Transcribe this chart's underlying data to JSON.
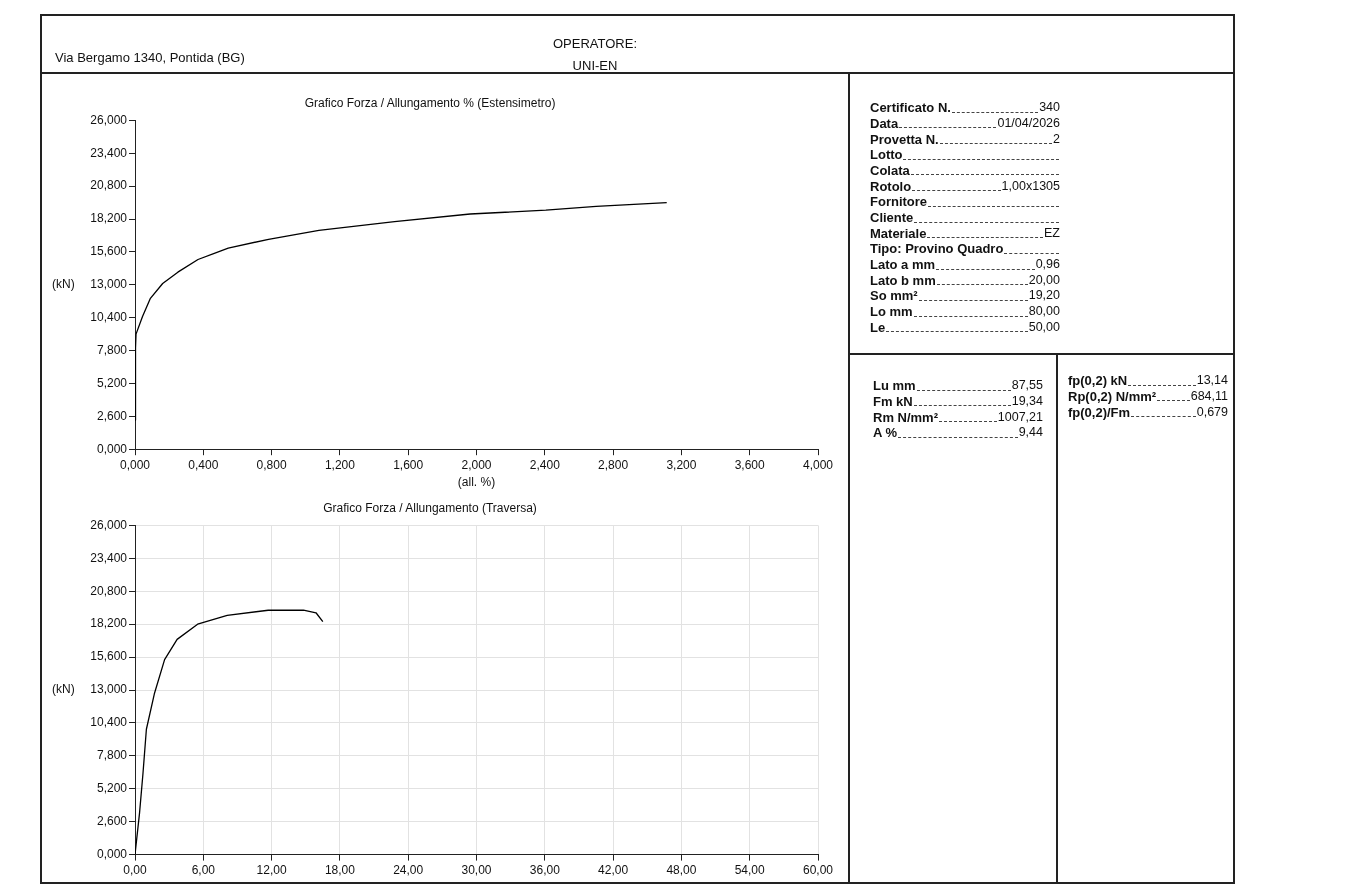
{
  "chart_data": [
    {
      "type": "other",
      "annotations": [
        "Via Bergamo 1340, Pontida (BG)",
        "OPERATORE:",
        "UNI-EN"
      ]
    },
    {
      "type": "line",
      "title": "Grafico Forza / Allungamento % (Estensimetro)",
      "xlabel": "(all. %)",
      "ylabel": "(kN)",
      "marker": "none",
      "line_style": "solid",
      "grid": false,
      "xlim": [
        0,
        4
      ],
      "xticks": [
        {
          "value": 0,
          "label": "0,000"
        },
        {
          "value": 0.4,
          "label": "0,400"
        },
        {
          "value": 0.8,
          "label": "0,800"
        },
        {
          "value": 1.2,
          "label": "1,200"
        },
        {
          "value": 1.6,
          "label": "1,600"
        },
        {
          "value": 2,
          "label": "2,000"
        },
        {
          "value": 2.4,
          "label": "2,400"
        },
        {
          "value": 2.8,
          "label": "2,800"
        },
        {
          "value": 3.2,
          "label": "3,200"
        },
        {
          "value": 3.6,
          "label": "3,600"
        },
        {
          "value": 4,
          "label": "4,000"
        }
      ],
      "ylim": [
        0,
        26
      ],
      "yticks": [
        {
          "value": 0,
          "label": "0,000"
        },
        {
          "value": 2.6,
          "label": "2,600"
        },
        {
          "value": 5.2,
          "label": "5,200"
        },
        {
          "value": 7.8,
          "label": "7,800"
        },
        {
          "value": 10.4,
          "label": "10,400"
        },
        {
          "value": 13,
          "label": "13,000"
        },
        {
          "value": 15.6,
          "label": "15,600"
        },
        {
          "value": 18.2,
          "label": "18,200"
        },
        {
          "value": 20.8,
          "label": "20,800"
        },
        {
          "value": 23.4,
          "label": "23,400"
        },
        {
          "value": 26,
          "label": "26,000"
        }
      ],
      "series": [
        {
          "color": "#000000",
          "x": [
            0,
            0.003,
            0.006,
            0.044,
            0.089,
            0.162,
            0.251,
            0.369,
            0.546,
            0.782,
            1.077,
            1.52,
            1.963,
            2.406,
            2.701,
            3.114
          ],
          "values": [
            2.3,
            8.0,
            9.1,
            10.5,
            11.9,
            13.1,
            14.0,
            15.0,
            15.9,
            16.6,
            17.3,
            18.0,
            18.6,
            18.9,
            19.2,
            19.5
          ]
        }
      ]
    },
    {
      "type": "line",
      "title": "Grafico Forza / Allungamento (Traversa)",
      "ylabel": "(kN)",
      "marker": "none",
      "line_style": "solid",
      "grid": true,
      "xlim": [
        0,
        60
      ],
      "xticks": [
        {
          "value": 0,
          "label": "0,00"
        },
        {
          "value": 6,
          "label": "6,00"
        },
        {
          "value": 12,
          "label": "12,00"
        },
        {
          "value": 18,
          "label": "18,00"
        },
        {
          "value": 24,
          "label": "24,00"
        },
        {
          "value": 30,
          "label": "30,00"
        },
        {
          "value": 36,
          "label": "36,00"
        },
        {
          "value": 42,
          "label": "42,00"
        },
        {
          "value": 48,
          "label": "48,00"
        },
        {
          "value": 54,
          "label": "54,00"
        },
        {
          "value": 60,
          "label": "60,00"
        }
      ],
      "ylim": [
        0,
        26
      ],
      "yticks": [
        {
          "value": 0,
          "label": "0,000"
        },
        {
          "value": 2.6,
          "label": "2,600"
        },
        {
          "value": 5.2,
          "label": "5,200"
        },
        {
          "value": 7.8,
          "label": "7,800"
        },
        {
          "value": 10.4,
          "label": "10,400"
        },
        {
          "value": 13,
          "label": "13,000"
        },
        {
          "value": 15.6,
          "label": "15,600"
        },
        {
          "value": 18.2,
          "label": "18,200"
        },
        {
          "value": 20.8,
          "label": "20,800"
        },
        {
          "value": 23.4,
          "label": "23,400"
        },
        {
          "value": 26,
          "label": "26,000"
        }
      ],
      "series": [
        {
          "color": "#000000",
          "x": [
            0,
            0.4,
            0.7,
            1.0,
            1.7,
            2.6,
            3.7,
            5.5,
            8.1,
            11.7,
            14.8,
            15.9,
            16.5
          ],
          "values": [
            0,
            3.3,
            6.4,
            9.9,
            12.7,
            15.4,
            17.0,
            18.2,
            18.9,
            19.3,
            19.3,
            19.1,
            18.4
          ]
        }
      ]
    },
    {
      "type": "other",
      "categories": [
        "Certificato N.",
        "Data",
        "Provetta N.",
        "Lotto",
        "Colata",
        "Rotolo",
        "Fornitore",
        "Cliente",
        "Materiale",
        "Tipo: Provino Quadro",
        "Lato a mm",
        "Lato b mm",
        "So mm²",
        "Lo mm",
        "Le"
      ],
      "value_labels": [
        "340",
        "01/04/2026",
        "2",
        null,
        null,
        "1,00x1305",
        null,
        null,
        "EZ",
        null,
        "0,96",
        "20,00",
        "19,20",
        "80,00",
        "50,00"
      ]
    },
    {
      "type": "other",
      "categories": [
        "Lu mm",
        "Fm kN",
        "Rm N/mm²",
        "A %"
      ],
      "value_labels": [
        "87,55",
        "19,34",
        "1007,21",
        "9,44"
      ]
    },
    {
      "type": "other",
      "categories": [
        "fp(0,2) kN",
        "Rp(0,2) N/mm²",
        "fp(0,2)/Fm"
      ],
      "value_labels": [
        "13,14",
        "684,11",
        "0,679"
      ]
    }
  ]
}
